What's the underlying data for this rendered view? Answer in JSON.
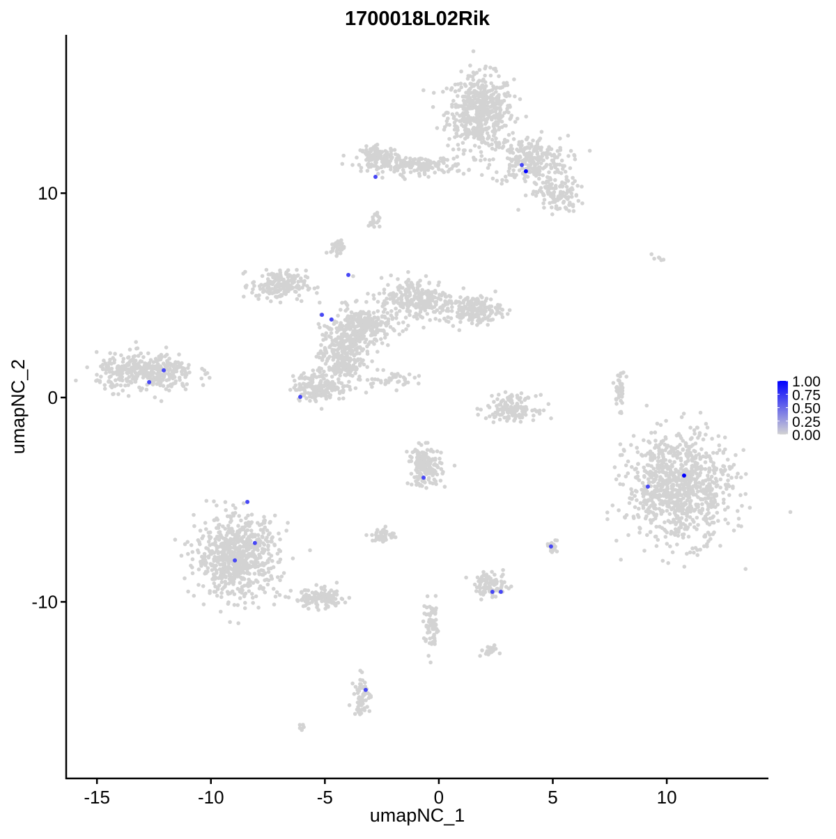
{
  "chart_data": {
    "type": "scatter",
    "title": "1700018L02Rik",
    "xlabel": "umapNC_1",
    "ylabel": "umapNC_2",
    "xlim": [
      -16.35,
      14.46
    ],
    "ylim": [
      -18.64,
      17.75
    ],
    "xticks": [
      -15,
      -10,
      -5,
      0,
      5,
      10
    ],
    "yticks": [
      -10,
      0,
      10
    ],
    "xtick_labels": [
      "-15",
      "-10",
      "-5",
      "0",
      "5",
      "10"
    ],
    "ytick_labels": [
      "-10",
      "0",
      "10"
    ],
    "grid": false,
    "colors": {
      "low": "#d3d3d3",
      "high": "#0000ff"
    },
    "legend": {
      "placement": "right",
      "type": "colorbar",
      "range": [
        0,
        1
      ],
      "labels": [
        "1.00",
        "0.75",
        "0.50",
        "0.25",
        "0.00"
      ]
    },
    "background_clusters": [
      {
        "x": 1.83,
        "y": 14.0,
        "sx": 1.2,
        "sy": 1.5,
        "n": 520
      },
      {
        "x": 3.97,
        "y": 11.6,
        "sx": 1.4,
        "sy": 1.0,
        "n": 260
      },
      {
        "x": 5.2,
        "y": 9.9,
        "sx": 0.8,
        "sy": 0.7,
        "n": 120
      },
      {
        "x": -1.0,
        "y": 11.35,
        "sx": 1.8,
        "sy": 0.35,
        "n": 160
      },
      {
        "x": -2.6,
        "y": 11.8,
        "sx": 0.7,
        "sy": 0.4,
        "n": 110
      },
      {
        "x": -2.84,
        "y": 8.7,
        "sx": 0.2,
        "sy": 0.4,
        "n": 20
      },
      {
        "x": -3.36,
        "y": 3.44,
        "sx": 1.0,
        "sy": 0.8,
        "n": 260
      },
      {
        "x": -7.03,
        "y": 5.49,
        "sx": 1.0,
        "sy": 0.6,
        "n": 180
      },
      {
        "x": -4.43,
        "y": 7.36,
        "sx": 0.25,
        "sy": 0.3,
        "n": 40
      },
      {
        "x": -0.92,
        "y": 4.8,
        "sx": 1.4,
        "sy": 0.9,
        "n": 260
      },
      {
        "x": 1.53,
        "y": 4.29,
        "sx": 1.0,
        "sy": 0.55,
        "n": 170
      },
      {
        "x": -4.28,
        "y": 2.08,
        "sx": 0.8,
        "sy": 1.2,
        "n": 260
      },
      {
        "x": -5.2,
        "y": 0.55,
        "sx": 1.0,
        "sy": 0.6,
        "n": 180
      },
      {
        "x": -2.2,
        "y": 0.9,
        "sx": 0.9,
        "sy": 0.3,
        "n": 40
      },
      {
        "x": -12.84,
        "y": 1.23,
        "sx": 1.8,
        "sy": 0.75,
        "n": 380
      },
      {
        "x": 3.2,
        "y": -0.5,
        "sx": 0.9,
        "sy": 0.5,
        "n": 150
      },
      {
        "x": 7.95,
        "y": 0.37,
        "sx": 0.2,
        "sy": 0.8,
        "n": 40
      },
      {
        "x": 10.54,
        "y": -4.4,
        "sx": 1.9,
        "sy": 2.2,
        "n": 900
      },
      {
        "x": -8.86,
        "y": -7.8,
        "sx": 1.5,
        "sy": 1.6,
        "n": 700
      },
      {
        "x": -5.2,
        "y": -9.85,
        "sx": 1.0,
        "sy": 0.4,
        "n": 120
      },
      {
        "x": -0.6,
        "y": -3.37,
        "sx": 0.6,
        "sy": 0.8,
        "n": 170
      },
      {
        "x": -2.44,
        "y": -6.78,
        "sx": 0.4,
        "sy": 0.3,
        "n": 50
      },
      {
        "x": 2.29,
        "y": -9.17,
        "sx": 0.6,
        "sy": 0.5,
        "n": 90
      },
      {
        "x": -0.3,
        "y": -11.2,
        "sx": 0.3,
        "sy": 1.0,
        "n": 70
      },
      {
        "x": -3.36,
        "y": -14.6,
        "sx": 0.3,
        "sy": 0.8,
        "n": 60
      },
      {
        "x": 4.95,
        "y": -7.3,
        "sx": 0.2,
        "sy": 0.3,
        "n": 20
      },
      {
        "x": 2.14,
        "y": -12.4,
        "sx": 0.4,
        "sy": 0.2,
        "n": 20
      },
      {
        "x": -6.02,
        "y": -16.1,
        "sx": 0.15,
        "sy": 0.1,
        "n": 6
      },
      {
        "x": 9.6,
        "y": 6.8,
        "sx": 0.4,
        "sy": 0.15,
        "n": 6
      }
    ],
    "expressing_points": [
      {
        "x": 3.82,
        "y": 11.07,
        "value": 1.0
      },
      {
        "x": 3.64,
        "y": 11.38,
        "value": 0.55
      },
      {
        "x": -2.78,
        "y": 10.8,
        "value": 0.55
      },
      {
        "x": -3.97,
        "y": 6.0,
        "value": 0.55
      },
      {
        "x": -5.13,
        "y": 4.05,
        "value": 0.55
      },
      {
        "x": -4.71,
        "y": 3.82,
        "value": 0.55
      },
      {
        "x": -12.07,
        "y": 1.33,
        "value": 0.55
      },
      {
        "x": -12.71,
        "y": 0.75,
        "value": 0.55
      },
      {
        "x": -6.08,
        "y": 0.03,
        "value": 0.55
      },
      {
        "x": 10.76,
        "y": -3.82,
        "value": 1.0
      },
      {
        "x": 9.17,
        "y": -4.36,
        "value": 0.55
      },
      {
        "x": -0.67,
        "y": -3.92,
        "value": 0.55
      },
      {
        "x": -8.4,
        "y": -5.11,
        "value": 0.55
      },
      {
        "x": -8.07,
        "y": -7.12,
        "value": 0.55
      },
      {
        "x": -8.95,
        "y": -7.97,
        "value": 0.55
      },
      {
        "x": 4.92,
        "y": -7.29,
        "value": 0.55
      },
      {
        "x": 2.35,
        "y": -9.51,
        "value": 0.55
      },
      {
        "x": 2.72,
        "y": -9.51,
        "value": 0.55
      },
      {
        "x": -3.21,
        "y": -14.31,
        "value": 0.55
      }
    ]
  }
}
